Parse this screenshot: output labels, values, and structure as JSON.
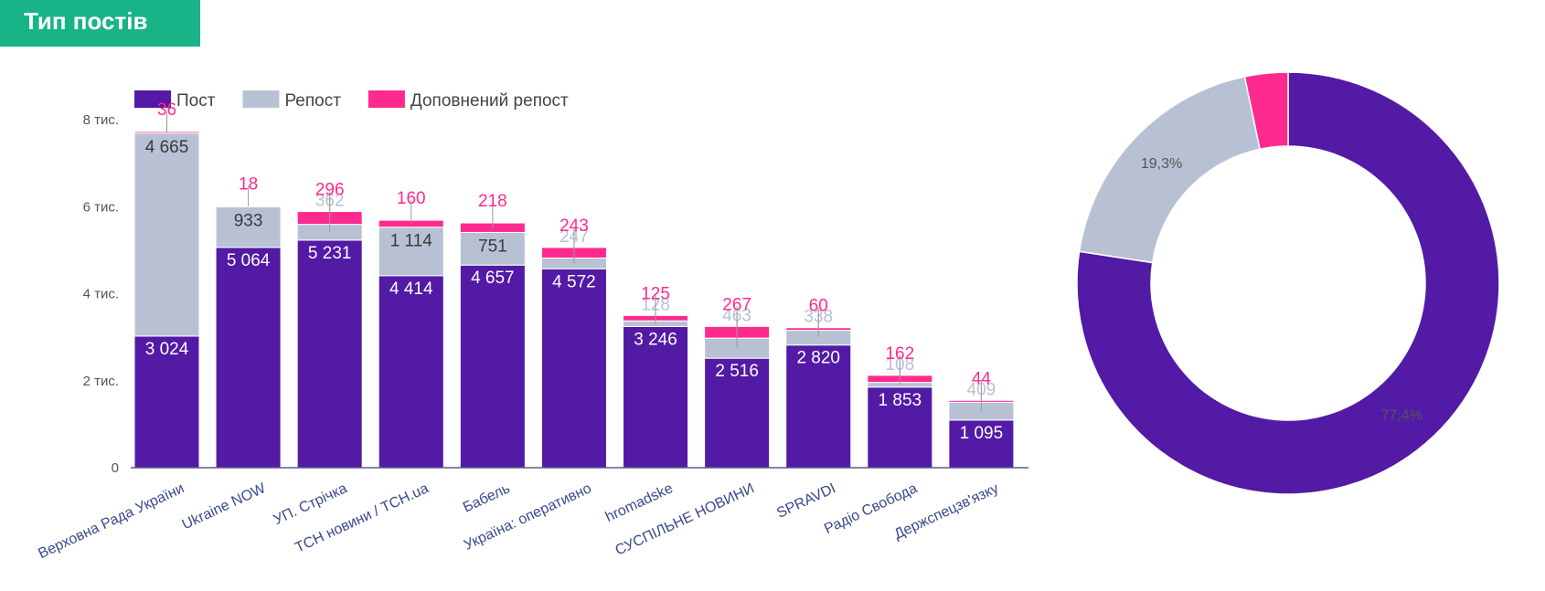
{
  "header": {
    "title": "Тип постів"
  },
  "colors": {
    "header_bg": "#18b487",
    "post": "#521aa5",
    "repost": "#b8c1d4",
    "extended": "#ff2a8d"
  },
  "chart_data": [
    {
      "type": "bar",
      "stacked": true,
      "title": "",
      "xlabel": "",
      "ylabel": "",
      "ylim": [
        0,
        8000
      ],
      "yticks": [
        {
          "value": 0,
          "label": "0"
        },
        {
          "value": 2000,
          "label": "2 тис."
        },
        {
          "value": 4000,
          "label": "4 тис."
        },
        {
          "value": 6000,
          "label": "6 тис."
        },
        {
          "value": 8000,
          "label": "8 тис."
        }
      ],
      "grid": false,
      "legend_position": "top-left",
      "categories": [
        "Верховна Рада України",
        "Ukraine NOW",
        "УП. Стрічка",
        "ТСН новини / TCH.ua",
        "Бабель",
        "Україна: оперативно",
        "hromadske",
        "СУСПІЛЬНЕ НОВИНИ",
        "SPRAVDI",
        "Радіо Свобода",
        "Держспецзв'язку"
      ],
      "series": [
        {
          "name": "Пост",
          "color": "#521aa5",
          "values": [
            3024,
            5064,
            5231,
            4414,
            4657,
            4572,
            3246,
            2516,
            2820,
            1853,
            1095
          ],
          "labels": [
            "3 024",
            "5 064",
            "5 231",
            "4 414",
            "4 657",
            "4 572",
            "3 246",
            "2 516",
            "2 820",
            "1 853",
            "1 095"
          ]
        },
        {
          "name": "Репост",
          "color": "#b8c1d4",
          "values": [
            4665,
            933,
            362,
            1114,
            751,
            247,
            128,
            463,
            338,
            108,
            409
          ],
          "labels": [
            "4 665",
            "933",
            "362",
            "1 114",
            "751",
            "247",
            "128",
            "463",
            "338",
            "108",
            "409"
          ]
        },
        {
          "name": "Доповнений репост",
          "color": "#ff2a8d",
          "values": [
            36,
            18,
            296,
            160,
            218,
            243,
            125,
            267,
            60,
            162,
            44
          ],
          "labels": [
            "36",
            "18",
            "296",
            "160",
            "218",
            "243",
            "125",
            "267",
            "60",
            "162",
            "44"
          ]
        }
      ]
    },
    {
      "type": "pie",
      "donut": true,
      "title": "",
      "slices": [
        {
          "name": "Пост",
          "value": 77.4,
          "label": "77,4%",
          "color": "#521aa5"
        },
        {
          "name": "Репост",
          "value": 19.3,
          "label": "19,3%",
          "color": "#b8c1d4"
        },
        {
          "name": "Доповнений репост",
          "value": 3.3,
          "label": "",
          "color": "#ff2a8d"
        }
      ]
    }
  ]
}
